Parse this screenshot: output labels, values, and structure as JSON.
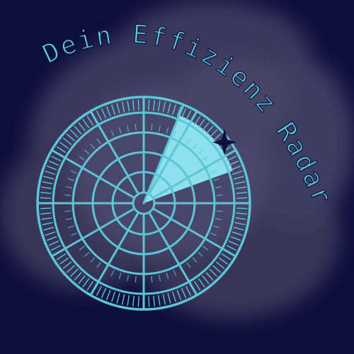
{
  "title": "Dein Effizienz Radar",
  "colors": {
    "background": "#0d0f3d",
    "cloud": "#3d3b5e",
    "cloud_highlight": "#4d4a6e",
    "radar_stroke": "#5cc5d8",
    "sweep_fill": "#8ee0ee",
    "title_fill": "#5ccde0",
    "title_outline": "#0d0f3d",
    "star": "#0d0f3d"
  },
  "icons": {
    "radar": "radar-icon",
    "star": "sparkle-star-icon"
  }
}
